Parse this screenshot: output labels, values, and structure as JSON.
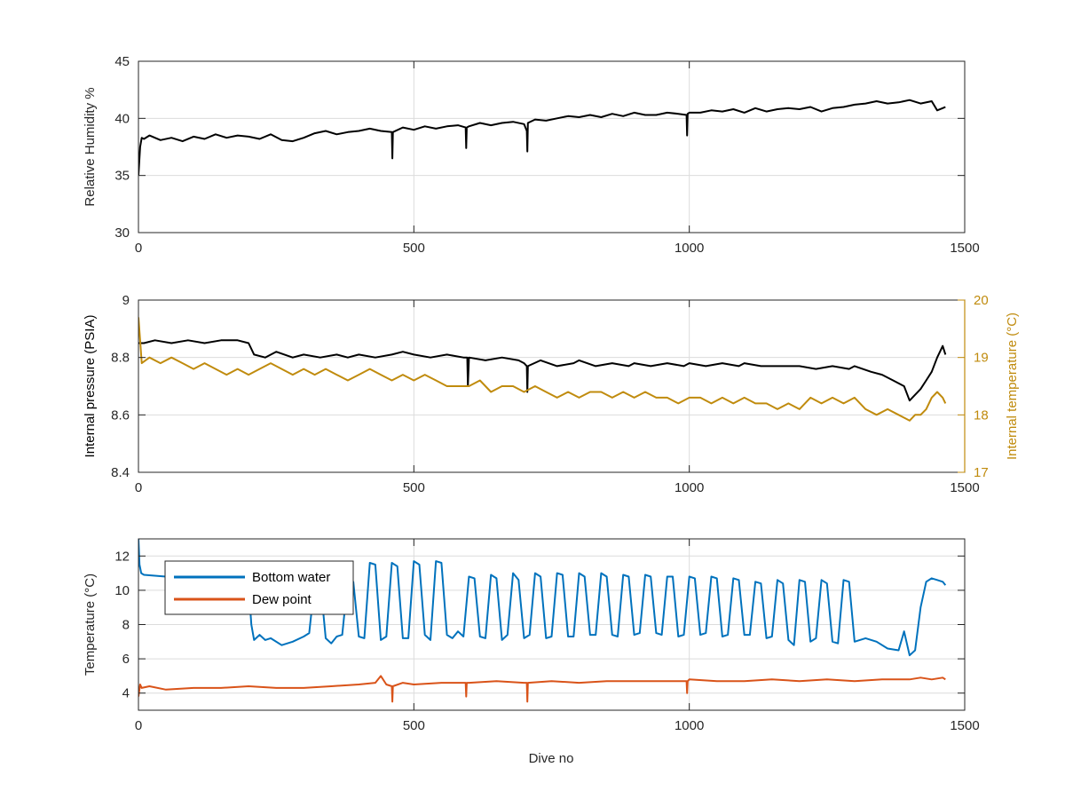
{
  "figure": {
    "xlabel_bottom": "Dive no"
  },
  "chart_data": [
    {
      "type": "line",
      "ylabel": "Relative Humidity %",
      "xlim": [
        0,
        1500
      ],
      "ylim": [
        30,
        45
      ],
      "xticks": [
        0,
        500,
        1000,
        1500
      ],
      "xticklabels": [
        "0",
        "500",
        "1000",
        "1500"
      ],
      "yticks": [
        30,
        35,
        40,
        45
      ],
      "yticklabels": [
        "30",
        "35",
        "40",
        "45"
      ],
      "grid": true,
      "series": [
        {
          "color": "#000000",
          "x": [
            0,
            3,
            6,
            10,
            20,
            40,
            60,
            80,
            100,
            120,
            140,
            160,
            180,
            200,
            220,
            240,
            260,
            280,
            300,
            320,
            340,
            360,
            380,
            400,
            420,
            440,
            460,
            461,
            462,
            480,
            500,
            520,
            540,
            560,
            580,
            594,
            595,
            596,
            600,
            620,
            640,
            660,
            680,
            700,
            705,
            706,
            707,
            720,
            740,
            760,
            780,
            800,
            820,
            840,
            860,
            880,
            900,
            920,
            940,
            960,
            980,
            995,
            996,
            997,
            1000,
            1020,
            1040,
            1060,
            1080,
            1100,
            1120,
            1140,
            1160,
            1180,
            1200,
            1220,
            1240,
            1260,
            1280,
            1300,
            1320,
            1340,
            1360,
            1380,
            1400,
            1420,
            1440,
            1450,
            1460,
            1465
          ],
          "y": [
            35,
            37.5,
            38.3,
            38.2,
            38.5,
            38.1,
            38.3,
            38.0,
            38.4,
            38.2,
            38.6,
            38.3,
            38.5,
            38.4,
            38.2,
            38.6,
            38.1,
            38.0,
            38.3,
            38.7,
            38.9,
            38.6,
            38.8,
            38.9,
            39.1,
            38.9,
            38.8,
            36.5,
            38.8,
            39.2,
            39.0,
            39.3,
            39.1,
            39.3,
            39.4,
            39.2,
            37.4,
            39.2,
            39.3,
            39.6,
            39.4,
            39.6,
            39.7,
            39.5,
            38.9,
            37.1,
            39.6,
            39.9,
            39.8,
            40.0,
            40.2,
            40.1,
            40.3,
            40.1,
            40.4,
            40.2,
            40.5,
            40.3,
            40.3,
            40.5,
            40.4,
            40.3,
            38.5,
            40.4,
            40.5,
            40.5,
            40.7,
            40.6,
            40.8,
            40.5,
            40.9,
            40.6,
            40.8,
            40.9,
            40.8,
            41.0,
            40.6,
            40.9,
            41.0,
            41.2,
            41.3,
            41.5,
            41.3,
            41.4,
            41.6,
            41.3,
            41.5,
            40.7,
            40.9,
            41.0
          ]
        }
      ]
    },
    {
      "type": "line",
      "ylabel": "Internal pressure (PSIA)",
      "ylabel_right": "Internal temperature (°C)",
      "xlim": [
        0,
        1500
      ],
      "ylim": [
        8.4,
        9.0
      ],
      "ylim_right": [
        17,
        20
      ],
      "xticks": [
        0,
        500,
        1000,
        1500
      ],
      "xticklabels": [
        "0",
        "500",
        "1000",
        "1500"
      ],
      "yticks": [
        8.4,
        8.6,
        8.8,
        9
      ],
      "yticklabels": [
        "8.4",
        "8.6",
        "8.8",
        "9"
      ],
      "yticks_right": [
        17,
        18,
        19,
        20
      ],
      "yticklabels_right": [
        "17",
        "18",
        "19",
        "20"
      ],
      "grid": true,
      "series": [
        {
          "axis": "left",
          "color": "#000000",
          "x": [
            0,
            10,
            30,
            60,
            90,
            120,
            150,
            180,
            200,
            210,
            230,
            250,
            280,
            300,
            330,
            360,
            380,
            400,
            430,
            460,
            480,
            500,
            530,
            560,
            590,
            597,
            598,
            600,
            630,
            660,
            690,
            700,
            705,
            706,
            707,
            730,
            760,
            790,
            800,
            830,
            860,
            890,
            900,
            930,
            960,
            990,
            1000,
            1030,
            1060,
            1090,
            1100,
            1130,
            1160,
            1190,
            1200,
            1230,
            1260,
            1290,
            1300,
            1330,
            1350,
            1370,
            1390,
            1400,
            1410,
            1420,
            1430,
            1440,
            1450,
            1460,
            1465
          ],
          "y": [
            8.85,
            8.85,
            8.86,
            8.85,
            8.86,
            8.85,
            8.86,
            8.86,
            8.85,
            8.81,
            8.8,
            8.82,
            8.8,
            8.81,
            8.8,
            8.81,
            8.8,
            8.81,
            8.8,
            8.81,
            8.82,
            8.81,
            8.8,
            8.81,
            8.8,
            8.8,
            8.7,
            8.8,
            8.79,
            8.8,
            8.79,
            8.78,
            8.77,
            8.68,
            8.77,
            8.79,
            8.77,
            8.78,
            8.79,
            8.77,
            8.78,
            8.77,
            8.78,
            8.77,
            8.78,
            8.77,
            8.78,
            8.77,
            8.78,
            8.77,
            8.78,
            8.77,
            8.77,
            8.77,
            8.77,
            8.76,
            8.77,
            8.76,
            8.77,
            8.75,
            8.74,
            8.72,
            8.7,
            8.65,
            8.67,
            8.69,
            8.72,
            8.75,
            8.8,
            8.84,
            8.81
          ]
        },
        {
          "axis": "right",
          "color": "#c08b0d",
          "x": [
            0,
            3,
            6,
            20,
            40,
            60,
            80,
            100,
            120,
            140,
            160,
            180,
            200,
            220,
            240,
            260,
            280,
            300,
            320,
            340,
            360,
            380,
            400,
            420,
            440,
            460,
            480,
            500,
            520,
            540,
            560,
            580,
            600,
            620,
            640,
            660,
            680,
            700,
            720,
            740,
            760,
            780,
            800,
            820,
            840,
            860,
            880,
            900,
            920,
            940,
            960,
            980,
            1000,
            1020,
            1040,
            1060,
            1080,
            1100,
            1120,
            1140,
            1160,
            1180,
            1200,
            1220,
            1240,
            1260,
            1280,
            1300,
            1320,
            1340,
            1360,
            1380,
            1400,
            1410,
            1420,
            1430,
            1440,
            1450,
            1460,
            1465
          ],
          "y": [
            19.7,
            19.3,
            18.9,
            19.0,
            18.9,
            19.0,
            18.9,
            18.8,
            18.9,
            18.8,
            18.7,
            18.8,
            18.7,
            18.8,
            18.9,
            18.8,
            18.7,
            18.8,
            18.7,
            18.8,
            18.7,
            18.6,
            18.7,
            18.8,
            18.7,
            18.6,
            18.7,
            18.6,
            18.7,
            18.6,
            18.5,
            18.5,
            18.5,
            18.6,
            18.4,
            18.5,
            18.5,
            18.4,
            18.5,
            18.4,
            18.3,
            18.4,
            18.3,
            18.4,
            18.4,
            18.3,
            18.4,
            18.3,
            18.4,
            18.3,
            18.3,
            18.2,
            18.3,
            18.3,
            18.2,
            18.3,
            18.2,
            18.3,
            18.2,
            18.2,
            18.1,
            18.2,
            18.1,
            18.3,
            18.2,
            18.3,
            18.2,
            18.3,
            18.1,
            18.0,
            18.1,
            18.0,
            17.9,
            18.0,
            18.0,
            18.1,
            18.3,
            18.4,
            18.3,
            18.2
          ]
        }
      ]
    },
    {
      "type": "line",
      "ylabel": "Temperature (°C)",
      "xlabel": "Dive no",
      "xlim": [
        0,
        1500
      ],
      "ylim": [
        3,
        13
      ],
      "xticks": [
        0,
        500,
        1000,
        1500
      ],
      "xticklabels": [
        "0",
        "500",
        "1000",
        "1500"
      ],
      "yticks": [
        4,
        6,
        8,
        10,
        12
      ],
      "yticklabels": [
        "4",
        "6",
        "8",
        "10",
        "12"
      ],
      "grid": true,
      "legend_position": "top-left",
      "series": [
        {
          "name": "Bottom water",
          "color": "#0072bd",
          "x": [
            0,
            2,
            5,
            10,
            50,
            100,
            150,
            180,
            200,
            205,
            210,
            220,
            230,
            240,
            260,
            280,
            300,
            310,
            320,
            330,
            340,
            350,
            360,
            370,
            380,
            390,
            400,
            410,
            420,
            430,
            440,
            450,
            460,
            470,
            480,
            490,
            500,
            510,
            520,
            530,
            540,
            550,
            560,
            570,
            580,
            590,
            600,
            610,
            620,
            630,
            640,
            650,
            660,
            670,
            680,
            690,
            700,
            710,
            720,
            730,
            740,
            750,
            760,
            770,
            780,
            790,
            800,
            810,
            820,
            830,
            840,
            850,
            860,
            870,
            880,
            890,
            900,
            910,
            920,
            930,
            940,
            950,
            960,
            970,
            980,
            990,
            1000,
            1010,
            1020,
            1030,
            1040,
            1050,
            1060,
            1070,
            1080,
            1090,
            1100,
            1110,
            1120,
            1130,
            1140,
            1150,
            1160,
            1170,
            1180,
            1190,
            1200,
            1210,
            1220,
            1230,
            1240,
            1250,
            1260,
            1270,
            1280,
            1290,
            1300,
            1320,
            1340,
            1360,
            1380,
            1390,
            1400,
            1410,
            1420,
            1430,
            1440,
            1450,
            1460,
            1465
          ],
          "y": [
            13,
            11.5,
            11.0,
            10.9,
            10.8,
            10.6,
            10.5,
            10.4,
            10.3,
            8.0,
            7.1,
            7.4,
            7.1,
            7.2,
            6.8,
            7.0,
            7.3,
            7.5,
            10.5,
            10.6,
            7.2,
            6.9,
            7.3,
            7.4,
            10.6,
            10.5,
            7.3,
            7.2,
            11.6,
            11.5,
            7.1,
            7.3,
            11.6,
            11.4,
            7.2,
            7.2,
            11.7,
            11.5,
            7.4,
            7.1,
            11.7,
            11.6,
            7.4,
            7.2,
            7.6,
            7.3,
            10.8,
            10.7,
            7.3,
            7.2,
            10.9,
            10.7,
            7.1,
            7.4,
            11.0,
            10.6,
            7.2,
            7.4,
            11.0,
            10.8,
            7.2,
            7.3,
            11.0,
            10.9,
            7.3,
            7.3,
            11.0,
            10.8,
            7.4,
            7.4,
            11.0,
            10.8,
            7.4,
            7.3,
            10.9,
            10.8,
            7.4,
            7.5,
            10.9,
            10.8,
            7.5,
            7.4,
            10.8,
            10.8,
            7.3,
            7.4,
            10.8,
            10.7,
            7.4,
            7.5,
            10.8,
            10.7,
            7.3,
            7.4,
            10.7,
            10.6,
            7.4,
            7.4,
            10.5,
            10.4,
            7.2,
            7.3,
            10.6,
            10.4,
            7.1,
            6.8,
            10.6,
            10.5,
            7.0,
            7.2,
            10.6,
            10.4,
            7.0,
            6.9,
            10.6,
            10.5,
            7.0,
            7.2,
            7.0,
            6.6,
            6.5,
            7.6,
            6.2,
            6.5,
            9.0,
            10.5,
            10.7,
            10.6,
            10.5,
            10.3
          ]
        },
        {
          "name": "Dew point",
          "color": "#d95319",
          "x": [
            0,
            3,
            6,
            20,
            50,
            100,
            150,
            200,
            250,
            300,
            350,
            400,
            430,
            440,
            450,
            460,
            461,
            462,
            480,
            500,
            550,
            594,
            595,
            596,
            600,
            650,
            700,
            705,
            706,
            707,
            750,
            800,
            850,
            900,
            950,
            995,
            996,
            997,
            1000,
            1050,
            1100,
            1150,
            1200,
            1250,
            1300,
            1350,
            1400,
            1420,
            1440,
            1460,
            1465
          ],
          "y": [
            3.8,
            4.5,
            4.3,
            4.4,
            4.2,
            4.3,
            4.3,
            4.4,
            4.3,
            4.3,
            4.4,
            4.5,
            4.6,
            5.0,
            4.5,
            4.4,
            3.5,
            4.4,
            4.6,
            4.5,
            4.6,
            4.6,
            3.8,
            4.6,
            4.6,
            4.7,
            4.6,
            4.6,
            3.5,
            4.6,
            4.7,
            4.6,
            4.7,
            4.7,
            4.7,
            4.7,
            4.0,
            4.7,
            4.8,
            4.7,
            4.7,
            4.8,
            4.7,
            4.8,
            4.7,
            4.8,
            4.8,
            4.9,
            4.8,
            4.9,
            4.8
          ]
        }
      ]
    }
  ]
}
